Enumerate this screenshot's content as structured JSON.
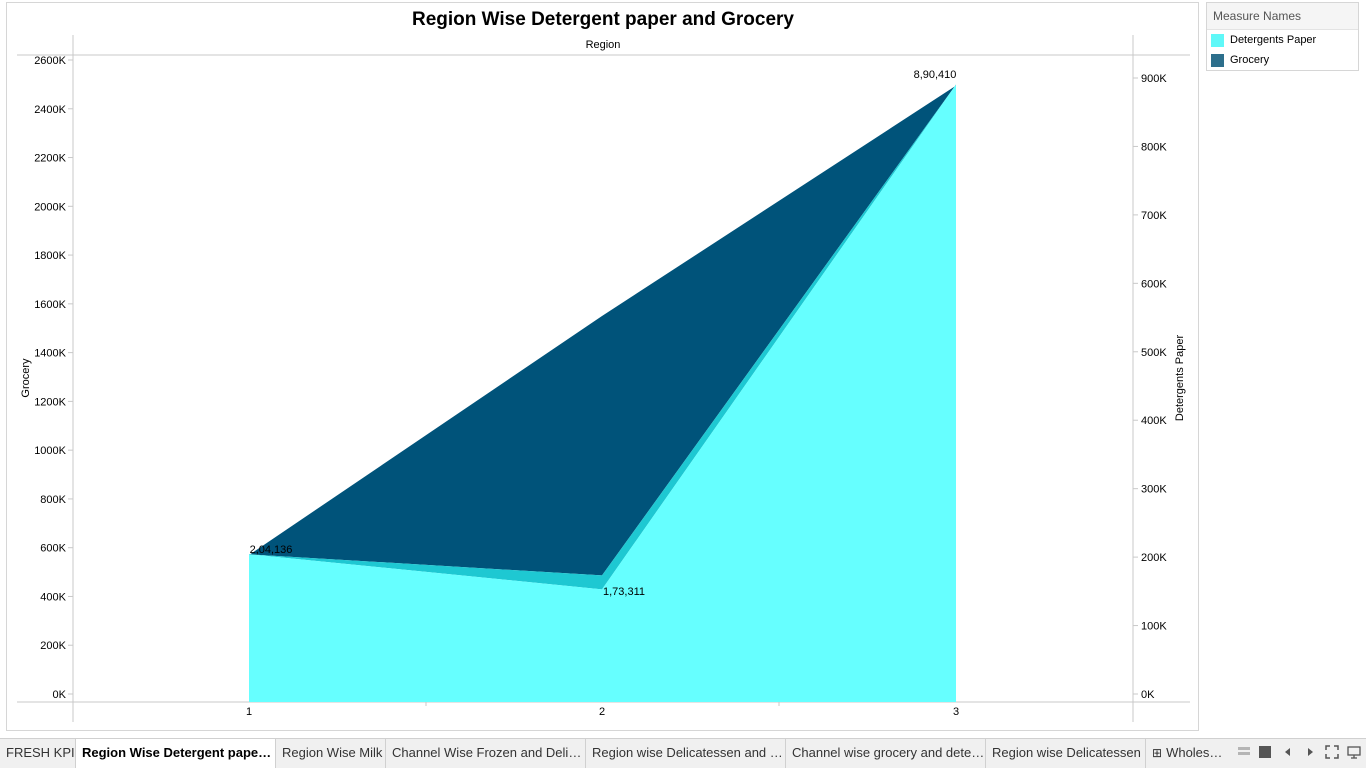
{
  "chart_data": {
    "type": "area",
    "title": "Region Wise Detergent paper and Grocery",
    "xlabel": "Region",
    "ylabel_left": "Grocery",
    "ylabel_right": "Detergents Paper",
    "categories": [
      "1",
      "2",
      "3"
    ],
    "ylim_left": [
      0,
      2600000
    ],
    "ylim_right": [
      0,
      950000
    ],
    "left_ticks": [
      "0K",
      "200K",
      "400K",
      "600K",
      "800K",
      "1000K",
      "1200K",
      "1400K",
      "1600K",
      "1800K",
      "2000K",
      "2200K",
      "2400K",
      "2600K"
    ],
    "right_ticks": [
      "0K",
      "100K",
      "200K",
      "300K",
      "400K",
      "500K",
      "600K",
      "700K",
      "800K",
      "900K"
    ],
    "series": [
      {
        "name": "Detergents Paper",
        "axis": "right",
        "values": [
          204136,
          173311,
          890410
        ],
        "color": "#66ffff"
      },
      {
        "name": "Grocery",
        "axis": "left",
        "values": [
          570000,
          1550000,
          2495000
        ],
        "color": "#00537a"
      }
    ],
    "data_labels": [
      "2,04,136",
      "1,73,311",
      "8,90,410"
    ],
    "legend_position": "top-right",
    "grid": false
  },
  "legend": {
    "title": "Measure Names",
    "items": [
      {
        "label": "Detergents Paper",
        "color": "#5ff8f8"
      },
      {
        "label": "Grocery",
        "color": "#2d6f8c"
      }
    ]
  },
  "tabs": [
    {
      "label": "FRESH KPI"
    },
    {
      "label": "Region Wise Detergent paper a..."
    },
    {
      "label": "Region Wise Milk"
    },
    {
      "label": "Channel Wise Frozen and Delica..."
    },
    {
      "label": "Region wise Delicatessen and D..."
    },
    {
      "label": "Channel wise grocery and deter..."
    },
    {
      "label": "Region wise Delicatessen"
    },
    {
      "label": "Wholesale"
    }
  ],
  "nav_icons": [
    "grid-view-icon",
    "single-view-icon",
    "prev-icon",
    "next-icon",
    "fullscreen-icon",
    "present-icon"
  ]
}
